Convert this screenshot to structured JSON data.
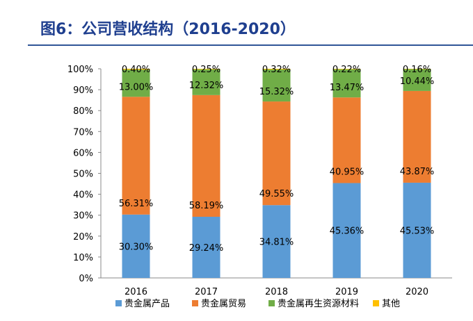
{
  "title": "图6：公司营收结构（2016-2020）",
  "chart_data": {
    "type": "bar",
    "stacked": true,
    "categories": [
      "2016",
      "2017",
      "2018",
      "2019",
      "2020"
    ],
    "ylim": [
      0,
      100
    ],
    "ytick_labels": [
      "0%",
      "10%",
      "20%",
      "30%",
      "40%",
      "50%",
      "60%",
      "70%",
      "80%",
      "90%",
      "100%"
    ],
    "series": [
      {
        "name": "贵金属产品",
        "color": "#5b9bd5",
        "values": [
          30.3,
          29.24,
          34.81,
          45.36,
          45.53
        ],
        "labels": [
          "30.30%",
          "29.24%",
          "34.81%",
          "45.36%",
          "45.53%"
        ]
      },
      {
        "name": "贵金属贸易",
        "color": "#ed7d31",
        "values": [
          56.31,
          58.19,
          49.55,
          40.95,
          43.87
        ],
        "labels": [
          "56.31%",
          "58.19%",
          "49.55%",
          "40.95%",
          "43.87%"
        ]
      },
      {
        "name": "贵金属再生资源材料",
        "color": "#70ad47",
        "values": [
          13.0,
          12.32,
          15.32,
          13.47,
          10.44
        ],
        "labels": [
          "13.00%",
          "12.32%",
          "15.32%",
          "13.47%",
          "10.44%"
        ]
      },
      {
        "name": "其他",
        "color": "#ffc000",
        "values": [
          0.4,
          0.25,
          0.32,
          0.22,
          0.16
        ],
        "labels": [
          "0.40%",
          "0.25%",
          "0.32%",
          "0.22%",
          "0.16%"
        ]
      }
    ],
    "legend_position": "bottom"
  }
}
